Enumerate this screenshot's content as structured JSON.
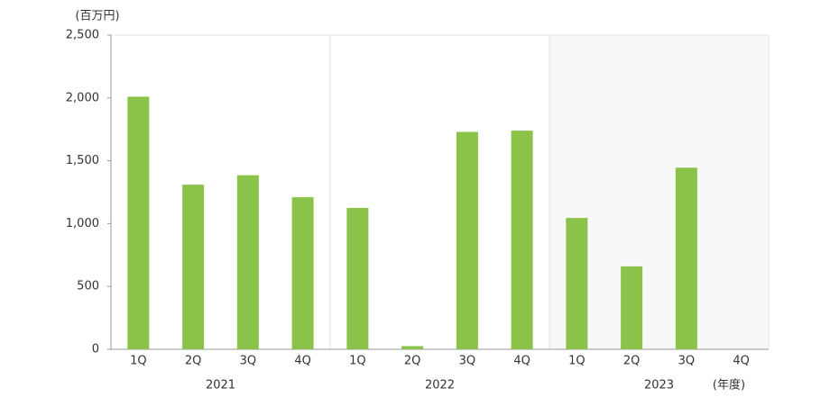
{
  "chart_data": {
    "type": "bar",
    "y_unit_label": "(百万円)",
    "x_unit_label": "(年度)",
    "groups": [
      "2021",
      "2022",
      "2023"
    ],
    "categories": [
      "1Q",
      "2Q",
      "3Q",
      "4Q",
      "1Q",
      "2Q",
      "3Q",
      "4Q",
      "1Q",
      "2Q",
      "3Q",
      "4Q"
    ],
    "values": [
      2010,
      1310,
      1385,
      1210,
      1125,
      25,
      1730,
      1740,
      1045,
      660,
      1445,
      null
    ],
    "color": "#8bc34a",
    "ylim": [
      0,
      2500
    ],
    "yticks": [
      0,
      500,
      {
        "value": 1000,
        "label": "1,000"
      },
      {
        "value": 1500,
        "label": "1,500"
      },
      {
        "value": 2000,
        "label": "2,000"
      },
      {
        "value": 2500,
        "label": "2,500"
      }
    ],
    "grid": false
  }
}
